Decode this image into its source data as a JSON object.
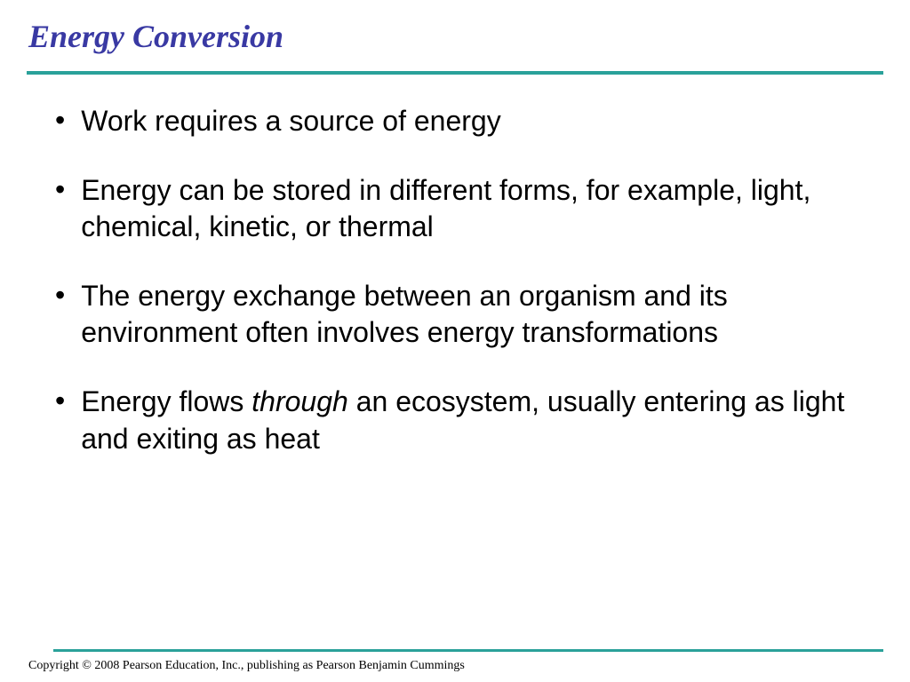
{
  "slide": {
    "title": "Energy Conversion",
    "title_color": "#3939a3",
    "title_fontsize": 36,
    "title_font": "Times New Roman",
    "divider_color": "#2aa19a",
    "background_color": "#ffffff",
    "bullets": [
      {
        "text": "Work requires a source of energy",
        "has_italic": false
      },
      {
        "text": "Energy can be stored in different forms, for example, light, chemical, kinetic, or thermal",
        "has_italic": false
      },
      {
        "text": "The energy exchange between an organism and its environment often involves energy transformations",
        "has_italic": false
      },
      {
        "text_before": "Energy flows ",
        "text_italic": "through",
        "text_after": " an ecosystem, usually entering as light and exiting as heat",
        "has_italic": true
      }
    ],
    "bullet_fontsize": 32,
    "bullet_color": "#000000",
    "bullet_font": "Arial",
    "copyright": "Copyright © 2008 Pearson Education, Inc., publishing as Pearson Benjamin Cummings",
    "copyright_fontsize": 14,
    "copyright_font": "Times New Roman"
  }
}
